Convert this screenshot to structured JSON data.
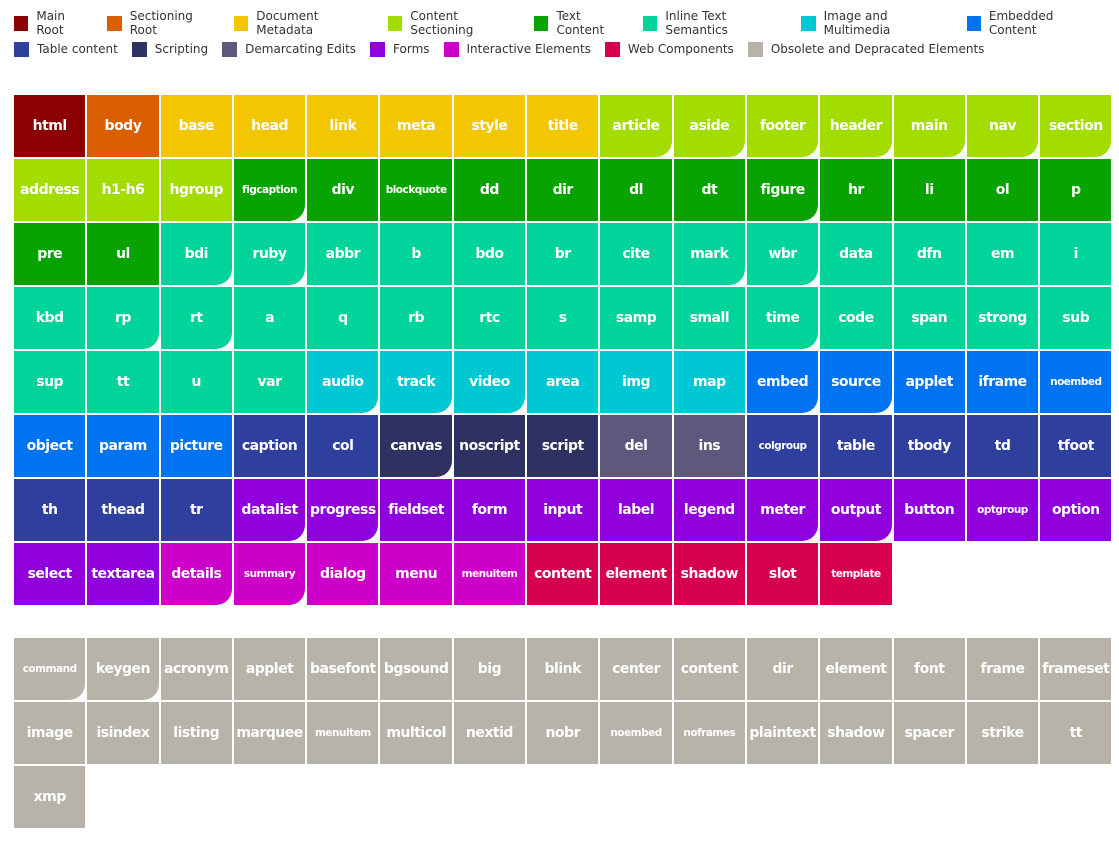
{
  "legend": [
    {
      "label": "Main Root",
      "color": "#8b0000"
    },
    {
      "label": "Sectioning Root",
      "color": "#d95f00"
    },
    {
      "label": "Document Metadata",
      "color": "#f2c600"
    },
    {
      "label": "Content Sectioning",
      "color": "#a3dc00"
    },
    {
      "label": "Text Content",
      "color": "#08a300"
    },
    {
      "label": "Inline Text Semantics",
      "color": "#00d49a"
    },
    {
      "label": "Image and Multimedia",
      "color": "#00c8d2"
    },
    {
      "label": "Embedded Content",
      "color": "#0073f0"
    },
    {
      "label": "Table content",
      "color": "#2e3f9e"
    },
    {
      "label": "Scripting",
      "color": "#2e3262"
    },
    {
      "label": "Demarcating Edits",
      "color": "#5f587d"
    },
    {
      "label": "Forms",
      "color": "#9000dc"
    },
    {
      "label": "Interactive Elements",
      "color": "#cc00c8"
    },
    {
      "label": "Web Components",
      "color": "#d6004f"
    },
    {
      "label": "Obsolete and Depracated Elements",
      "color": "#b8b3a8"
    }
  ],
  "elements": [
    [
      "html",
      0,
      ""
    ],
    [
      "body",
      1,
      ""
    ],
    [
      "base",
      2,
      ""
    ],
    [
      "head",
      2,
      ""
    ],
    [
      "link",
      2,
      ""
    ],
    [
      "meta",
      2,
      ""
    ],
    [
      "style",
      2,
      ""
    ],
    [
      "title",
      2,
      ""
    ],
    [
      "article",
      3,
      "r"
    ],
    [
      "aside",
      3,
      "r"
    ],
    [
      "footer",
      3,
      "r"
    ],
    [
      "header",
      3,
      "r"
    ],
    [
      "main",
      3,
      "r"
    ],
    [
      "nav",
      3,
      "r"
    ],
    [
      "section",
      3,
      "r"
    ],
    [
      "address",
      3,
      ""
    ],
    [
      "h1-h6",
      3,
      ""
    ],
    [
      "hgroup",
      3,
      ""
    ],
    [
      "figcaption",
      4,
      "r s"
    ],
    [
      "div",
      4,
      ""
    ],
    [
      "blockquote",
      4,
      "s"
    ],
    [
      "dd",
      4,
      ""
    ],
    [
      "dir",
      4,
      ""
    ],
    [
      "dl",
      4,
      ""
    ],
    [
      "dt",
      4,
      ""
    ],
    [
      "figure",
      4,
      "r"
    ],
    [
      "hr",
      4,
      ""
    ],
    [
      "li",
      4,
      ""
    ],
    [
      "ol",
      4,
      ""
    ],
    [
      "p",
      4,
      ""
    ],
    [
      "pre",
      4,
      ""
    ],
    [
      "ul",
      4,
      ""
    ],
    [
      "bdi",
      5,
      "r"
    ],
    [
      "ruby",
      5,
      "r"
    ],
    [
      "abbr",
      5,
      ""
    ],
    [
      "b",
      5,
      ""
    ],
    [
      "bdo",
      5,
      ""
    ],
    [
      "br",
      5,
      ""
    ],
    [
      "cite",
      5,
      ""
    ],
    [
      "mark",
      5,
      "r"
    ],
    [
      "wbr",
      5,
      "r"
    ],
    [
      "data",
      5,
      ""
    ],
    [
      "dfn",
      5,
      ""
    ],
    [
      "em",
      5,
      ""
    ],
    [
      "i",
      5,
      ""
    ],
    [
      "kbd",
      5,
      ""
    ],
    [
      "rp",
      5,
      "r"
    ],
    [
      "rt",
      5,
      "r"
    ],
    [
      "a",
      5,
      ""
    ],
    [
      "q",
      5,
      ""
    ],
    [
      "rb",
      5,
      ""
    ],
    [
      "rtc",
      5,
      ""
    ],
    [
      "s",
      5,
      ""
    ],
    [
      "samp",
      5,
      ""
    ],
    [
      "small",
      5,
      ""
    ],
    [
      "time",
      5,
      "r"
    ],
    [
      "code",
      5,
      ""
    ],
    [
      "span",
      5,
      ""
    ],
    [
      "strong",
      5,
      ""
    ],
    [
      "sub",
      5,
      ""
    ],
    [
      "sup",
      5,
      ""
    ],
    [
      "tt",
      5,
      ""
    ],
    [
      "u",
      5,
      ""
    ],
    [
      "var",
      5,
      ""
    ],
    [
      "audio",
      6,
      "r"
    ],
    [
      "track",
      6,
      "r"
    ],
    [
      "video",
      6,
      "r"
    ],
    [
      "area",
      6,
      ""
    ],
    [
      "img",
      6,
      ""
    ],
    [
      "map",
      6,
      ""
    ],
    [
      "embed",
      7,
      "r"
    ],
    [
      "source",
      7,
      "r"
    ],
    [
      "applet",
      7,
      ""
    ],
    [
      "iframe",
      7,
      ""
    ],
    [
      "noembed",
      7,
      "s"
    ],
    [
      "object",
      7,
      ""
    ],
    [
      "param",
      7,
      ""
    ],
    [
      "picture",
      7,
      ""
    ],
    [
      "caption",
      8,
      ""
    ],
    [
      "col",
      8,
      ""
    ],
    [
      "canvas",
      9,
      "r"
    ],
    [
      "noscript",
      9,
      ""
    ],
    [
      "script",
      9,
      ""
    ],
    [
      "del",
      10,
      ""
    ],
    [
      "ins",
      10,
      ""
    ],
    [
      "colgroup",
      8,
      "s"
    ],
    [
      "table",
      8,
      ""
    ],
    [
      "tbody",
      8,
      ""
    ],
    [
      "td",
      8,
      ""
    ],
    [
      "tfoot",
      8,
      ""
    ],
    [
      "th",
      8,
      ""
    ],
    [
      "thead",
      8,
      ""
    ],
    [
      "tr",
      8,
      ""
    ],
    [
      "datalist",
      11,
      "r"
    ],
    [
      "progress",
      11,
      "r"
    ],
    [
      "fieldset",
      11,
      ""
    ],
    [
      "form",
      11,
      ""
    ],
    [
      "input",
      11,
      ""
    ],
    [
      "label",
      11,
      ""
    ],
    [
      "legend",
      11,
      ""
    ],
    [
      "meter",
      11,
      "r"
    ],
    [
      "output",
      11,
      "r"
    ],
    [
      "button",
      11,
      ""
    ],
    [
      "optgroup",
      11,
      "s"
    ],
    [
      "option",
      11,
      ""
    ],
    [
      "select",
      11,
      ""
    ],
    [
      "textarea",
      11,
      ""
    ],
    [
      "details",
      12,
      "r"
    ],
    [
      "summary",
      12,
      "r s"
    ],
    [
      "dialog",
      12,
      ""
    ],
    [
      "menu",
      12,
      ""
    ],
    [
      "menuitem",
      12,
      "s"
    ],
    [
      "content",
      13,
      ""
    ],
    [
      "element",
      13,
      ""
    ],
    [
      "shadow",
      13,
      ""
    ],
    [
      "slot",
      13,
      ""
    ],
    [
      "template",
      13,
      "s"
    ]
  ],
  "obsolete": [
    [
      "command",
      14,
      "r s"
    ],
    [
      "keygen",
      14,
      "r"
    ],
    [
      "acronym",
      14,
      ""
    ],
    [
      "applet",
      14,
      ""
    ],
    [
      "basefont",
      14,
      ""
    ],
    [
      "bgsound",
      14,
      ""
    ],
    [
      "big",
      14,
      ""
    ],
    [
      "blink",
      14,
      ""
    ],
    [
      "center",
      14,
      ""
    ],
    [
      "content",
      14,
      ""
    ],
    [
      "dir",
      14,
      ""
    ],
    [
      "element",
      14,
      ""
    ],
    [
      "font",
      14,
      ""
    ],
    [
      "frame",
      14,
      ""
    ],
    [
      "frameset",
      14,
      ""
    ],
    [
      "image",
      14,
      ""
    ],
    [
      "isindex",
      14,
      ""
    ],
    [
      "listing",
      14,
      ""
    ],
    [
      "marquee",
      14,
      ""
    ],
    [
      "menuitem",
      14,
      "s"
    ],
    [
      "multicol",
      14,
      ""
    ],
    [
      "nextid",
      14,
      ""
    ],
    [
      "nobr",
      14,
      ""
    ],
    [
      "noembed",
      14,
      "s"
    ],
    [
      "noframes",
      14,
      "s"
    ],
    [
      "plaintext",
      14,
      ""
    ],
    [
      "shadow",
      14,
      ""
    ],
    [
      "spacer",
      14,
      ""
    ],
    [
      "strike",
      14,
      ""
    ],
    [
      "tt",
      14,
      ""
    ],
    [
      "xmp",
      14,
      ""
    ]
  ]
}
